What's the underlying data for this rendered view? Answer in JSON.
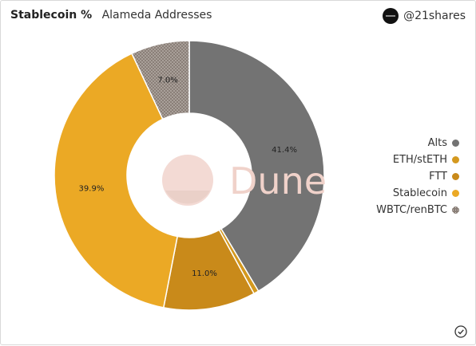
{
  "header": {
    "title": "Stablecoin %",
    "subtitle": "Alameda Addresses",
    "brand_handle": "@21shares",
    "brand_logo_icon": "21shares-logo-icon"
  },
  "watermark": {
    "text": "Dune"
  },
  "chart_data": {
    "type": "pie",
    "donut": true,
    "title": "Stablecoin %",
    "subtitle": "Alameda Addresses",
    "legend_position": "right",
    "slices": [
      {
        "name": "Alts",
        "value": 41.4,
        "label": "41.4%",
        "color": "#737373",
        "pattern": "solid"
      },
      {
        "name": "ETH/stETH",
        "value": 0.6,
        "label": "",
        "color": "#d4991f",
        "pattern": "solid"
      },
      {
        "name": "FTT",
        "value": 11.0,
        "label": "11.0%",
        "color": "#c98a1a",
        "pattern": "solid"
      },
      {
        "name": "Stablecoin",
        "value": 39.9,
        "label": "39.9%",
        "color": "#eba925",
        "pattern": "solid"
      },
      {
        "name": "WBTC/renBTC",
        "value": 7.0,
        "label": "7.0%",
        "color": "#8a7f78",
        "pattern": "dotted"
      }
    ]
  },
  "footer": {
    "status_icon": "check-circle-icon"
  }
}
